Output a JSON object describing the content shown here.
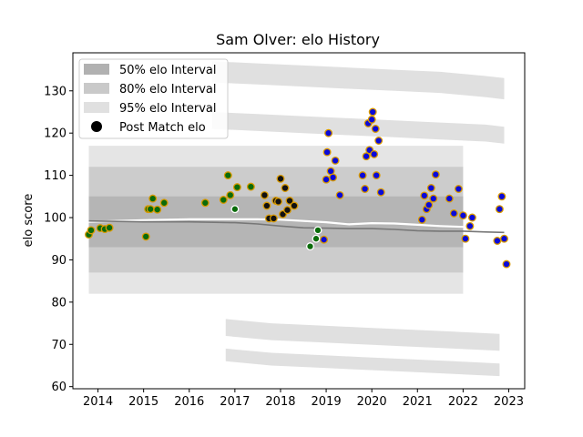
{
  "chart_data": {
    "type": "scatter",
    "title": "Sam Olver: elo History",
    "xlabel": "",
    "ylabel": "elo score",
    "xlim": [
      2013.45,
      2023.35
    ],
    "ylim": [
      59.5,
      139
    ],
    "xticks": [
      2014,
      2015,
      2016,
      2017,
      2018,
      2019,
      2020,
      2021,
      2022,
      2023
    ],
    "yticks": [
      60,
      70,
      80,
      90,
      100,
      110,
      120,
      130
    ],
    "legend": {
      "placement": "top-left",
      "entries": [
        "50% elo Interval",
        "80% elo Interval",
        "95% elo Interval",
        "Post Match elo"
      ]
    },
    "intervals": {
      "x": [
        2013.8,
        2014.5,
        2015.0,
        2015.5,
        2016.0,
        2016.5,
        2017.0,
        2017.5,
        2018.0,
        2018.5,
        2019.0,
        2019.5,
        2020.0,
        2020.5,
        2021.0,
        2021.5,
        2022.0
      ],
      "band95": {
        "upper": [
          117,
          117,
          117,
          117,
          117,
          117,
          117,
          117,
          117,
          117,
          117,
          117,
          117,
          117,
          117,
          117,
          117
        ],
        "lower": [
          82,
          82,
          82,
          82,
          82,
          82,
          82,
          82,
          82,
          82,
          82,
          82,
          82,
          82,
          82,
          82,
          82
        ]
      },
      "band80": {
        "upper": [
          112,
          112,
          112,
          112,
          112,
          112,
          112,
          112,
          112,
          112,
          112,
          112,
          112,
          112,
          112,
          112,
          112
        ],
        "lower": [
          87,
          87,
          87,
          87,
          87,
          87,
          87,
          87,
          87,
          87,
          87,
          87,
          87,
          87,
          87,
          87,
          87
        ]
      },
      "band50": {
        "upper": [
          105,
          105,
          105,
          105,
          105,
          105,
          105,
          105,
          105,
          105,
          105,
          105,
          105,
          105,
          105,
          105,
          105
        ],
        "lower": [
          93,
          93,
          93,
          93,
          93,
          93,
          93,
          93,
          93,
          93,
          93,
          93,
          93,
          93,
          93,
          93,
          93
        ]
      }
    },
    "outer_bands": [
      {
        "x": [
          2016.5,
          2017.5,
          2018.5,
          2019.5,
          2020.5,
          2021.5,
          2022.5,
          2022.9
        ],
        "upper": [
          137,
          136.5,
          136,
          135.5,
          135,
          134.5,
          133.5,
          133
        ],
        "lower": [
          132,
          131.5,
          131,
          130.5,
          130,
          129.5,
          128.5,
          128
        ]
      },
      {
        "x": [
          2016.5,
          2017.5,
          2018.5,
          2019.5,
          2020.5,
          2021.5,
          2022.5,
          2022.9
        ],
        "upper": [
          125,
          124.5,
          124,
          123.5,
          123,
          122.5,
          122,
          121.5
        ],
        "lower": [
          121,
          120.5,
          120,
          119.5,
          119,
          118.5,
          118,
          117.5
        ]
      },
      {
        "x": [
          2016.8,
          2017.8,
          2018.8,
          2019.8,
          2020.8,
          2021.8,
          2022.8
        ],
        "upper": [
          76,
          75,
          74.5,
          74,
          73.5,
          73,
          72.5
        ],
        "lower": [
          72,
          71,
          70.5,
          70,
          69.5,
          69,
          68.5
        ]
      },
      {
        "x": [
          2016.8,
          2017.8,
          2018.8,
          2019.8,
          2020.8,
          2021.8,
          2022.8
        ],
        "upper": [
          69,
          68,
          67.5,
          67,
          66.5,
          66,
          65.5
        ],
        "lower": [
          66,
          65,
          64.5,
          64,
          63.5,
          63,
          62.5
        ]
      }
    ],
    "mean_line": {
      "x": [
        2013.8,
        2015.0,
        2016.0,
        2017.0,
        2017.5,
        2018.0,
        2018.5,
        2019.0,
        2019.5,
        2020.0,
        2020.5,
        2021.0,
        2021.5,
        2022.0,
        2022.5,
        2022.9
      ],
      "y": [
        99.2,
        99.0,
        99.0,
        98.8,
        98.5,
        98.0,
        97.6,
        97.5,
        97.4,
        97.4,
        97.2,
        96.9,
        96.8,
        96.8,
        96.6,
        96.5
      ]
    },
    "white_line": {
      "x": [
        2013.8,
        2015.0,
        2016.0,
        2017.0,
        2017.5,
        2018.0,
        2018.5,
        2019.0,
        2019.5,
        2020.0,
        2020.5,
        2021.0,
        2021.5,
        2022.0,
        2022.5,
        2022.9
      ],
      "y": [
        99.0,
        99.4,
        99.6,
        99.6,
        99.6,
        99.5,
        99.2,
        98.9,
        98.4,
        98.7,
        98.6,
        98.3,
        98.0,
        97.8,
        97.5,
        96.6
      ]
    },
    "series": [
      {
        "color": "#0a6b0a",
        "edge": "#d99a00",
        "x": [
          2013.8,
          2013.85,
          2014.05,
          2014.15,
          2014.25,
          2015.05,
          2015.1,
          2015.15,
          2015.2,
          2015.3,
          2015.45,
          2016.35,
          2016.75,
          2016.85,
          2016.9,
          2017.05,
          2017.35
        ],
        "y": [
          96.0,
          97.0,
          97.5,
          97.3,
          97.6,
          95.5,
          102.0,
          102.0,
          104.5,
          101.9,
          103.5,
          103.5,
          104.2,
          110.0,
          105.3,
          107.2,
          107.3
        ]
      },
      {
        "color": "#0a6b0a",
        "edge": "#ffffff",
        "x": [
          2017.0,
          2018.65,
          2018.78,
          2018.82
        ],
        "y": [
          102.0,
          93.2,
          95.0,
          97.0
        ]
      },
      {
        "color": "#111111",
        "edge": "#d99a00",
        "x": [
          2017.65,
          2017.7,
          2017.75,
          2017.85,
          2017.9,
          2017.95,
          2018.0,
          2018.05,
          2018.1,
          2018.15,
          2018.2,
          2018.3
        ],
        "y": [
          105.3,
          102.8,
          99.8,
          99.8,
          104.0,
          103.8,
          109.2,
          100.8,
          107.0,
          101.8,
          104.0,
          102.8
        ]
      },
      {
        "color": "#0a0ad9",
        "edge": "#d99a00",
        "x": [
          2018.95,
          2019.0,
          2019.02,
          2019.05,
          2019.1,
          2019.15,
          2019.2,
          2019.3,
          2019.8,
          2019.85,
          2019.88,
          2019.92,
          2019.95,
          2020.0,
          2020.02,
          2020.05,
          2020.08,
          2020.1,
          2020.15,
          2020.2,
          2021.1,
          2021.15,
          2021.2,
          2021.25,
          2021.3,
          2021.35,
          2021.4,
          2021.7,
          2021.8,
          2021.9,
          2022.0,
          2022.05,
          2022.15,
          2022.2,
          2022.75,
          2022.8,
          2022.85,
          2022.9,
          2022.95
        ],
        "y": [
          94.8,
          109.0,
          115.5,
          120.0,
          111.0,
          109.5,
          113.5,
          105.3,
          110.0,
          106.8,
          114.5,
          122.3,
          116.0,
          123.2,
          125.0,
          115.0,
          121.0,
          110.0,
          118.2,
          106.0,
          99.5,
          105.2,
          102.0,
          103.0,
          107.0,
          104.5,
          110.2,
          104.5,
          101.0,
          106.8,
          100.5,
          95.0,
          98.0,
          100.0,
          94.5,
          102.0,
          105.0,
          95.0,
          89.0
        ]
      }
    ]
  }
}
